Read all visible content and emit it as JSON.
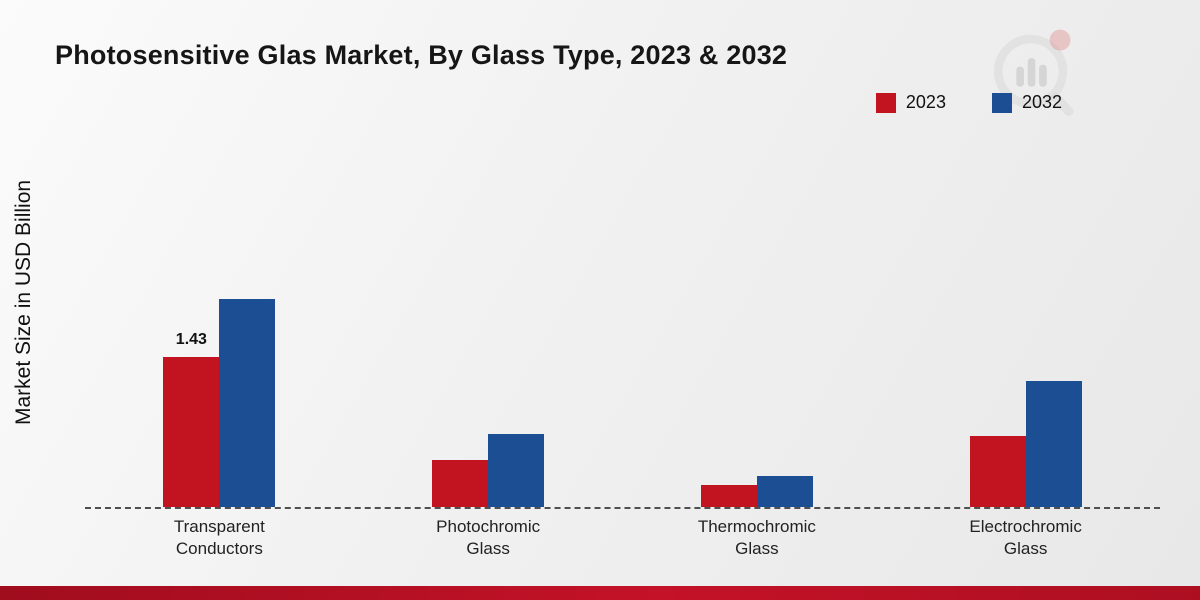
{
  "title": "Photosensitive Glas Market, By Glass Type, 2023 & 2032",
  "ylabel": "Market Size in USD Billion",
  "legend": [
    {
      "label": "2023",
      "color": "#c21320"
    },
    {
      "label": "2032",
      "color": "#1c4e94"
    }
  ],
  "colors": {
    "series_2023": "#c21320",
    "series_2032": "#1c4e94",
    "footer_strip": "#b81024",
    "axis_dash": "#4f4f4f"
  },
  "chart_data": {
    "type": "bar",
    "categories": [
      "Transparent Conductors",
      "Photochromic Glass",
      "Thermochromic Glass",
      "Electrochromic Glass"
    ],
    "series": [
      {
        "name": "2023",
        "color": "#c21320",
        "values": [
          1.43,
          0.45,
          0.21,
          0.68
        ]
      },
      {
        "name": "2032",
        "color": "#1c4e94",
        "values": [
          1.98,
          0.7,
          0.3,
          1.2
        ]
      }
    ],
    "annotations": [
      {
        "series": "2023",
        "category_index": 0,
        "text": "1.43"
      }
    ],
    "title": "Photosensitive Glas Market, By Glass Type, 2023 & 2032",
    "xlabel": "",
    "ylabel": "Market Size in USD Billion",
    "ylim": [
      0,
      3.5
    ],
    "grid": false,
    "legend_position": "top-right",
    "baseline_style": "dashed"
  }
}
